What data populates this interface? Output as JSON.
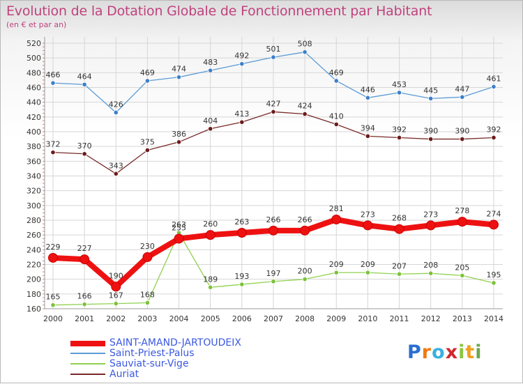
{
  "title": "Evolution de la Dotation Globale de Fonctionnement par Habitant",
  "subtitle": "(en € et par an)",
  "logo": {
    "text": "Proxiti",
    "letters": [
      "P",
      "r",
      "o",
      "x",
      "i",
      "t",
      "i"
    ]
  },
  "chart_data": {
    "type": "line",
    "x": [
      "2000",
      "2001",
      "2002",
      "2003",
      "2004",
      "2005",
      "2006",
      "2007",
      "2008",
      "2009",
      "2010",
      "2011",
      "2012",
      "2013",
      "2014"
    ],
    "ylim": [
      160,
      520
    ],
    "yticks": [
      160,
      180,
      200,
      220,
      240,
      260,
      280,
      300,
      320,
      340,
      360,
      380,
      400,
      420,
      440,
      460,
      480,
      500,
      520
    ],
    "grid": true,
    "legend": "bottom-left",
    "series": [
      {
        "name": "Saint-Priest-Palus",
        "color": "#5b9bd5",
        "point_color": "#3d7fc9",
        "values": [
          466,
          464,
          426,
          469,
          474,
          483,
          492,
          501,
          508,
          469,
          446,
          453,
          445,
          447,
          461
        ]
      },
      {
        "name": "Auriat",
        "color": "#7a2a2a",
        "point_color": "#6b1c1c",
        "values": [
          372,
          370,
          343,
          375,
          386,
          404,
          413,
          427,
          424,
          410,
          394,
          392,
          390,
          390,
          392
        ]
      },
      {
        "name": "Sauviat-sur-Vige",
        "color": "#8fd14f",
        "point_color": "#7cc23a",
        "values": [
          165,
          166,
          167,
          168,
          263,
          189,
          193,
          197,
          200,
          209,
          209,
          207,
          208,
          205,
          195
        ]
      },
      {
        "name": "SAINT-AMAND-JARTOUDEIX",
        "color": "#ee1111",
        "point_color": "#ee1111",
        "values": [
          229,
          227,
          190,
          230,
          255,
          260,
          263,
          266,
          266,
          281,
          273,
          268,
          273,
          278,
          274
        ]
      }
    ],
    "legend_order": [
      "SAINT-AMAND-JARTOUDEIX",
      "Saint-Priest-Palus",
      "Sauviat-sur-Vige",
      "Auriat"
    ]
  }
}
